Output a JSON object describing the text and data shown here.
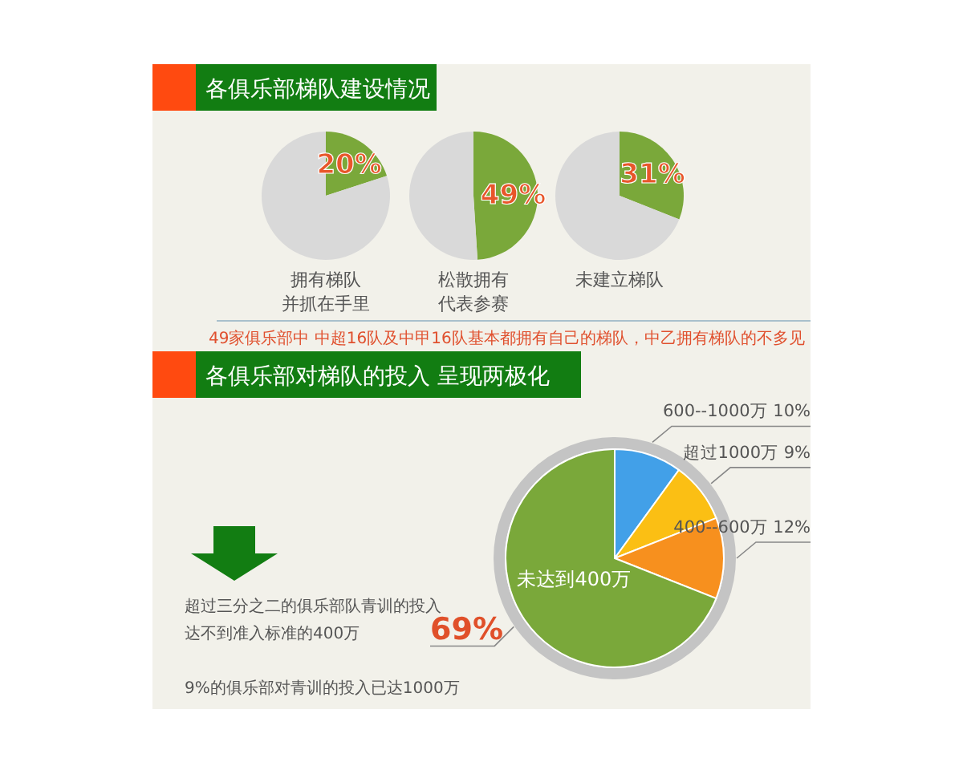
{
  "chart_data": [
    {
      "type": "pie",
      "title": "各俱乐部梯队建设情况",
      "xlabel": "拥有梯队并抓在手里",
      "categories": [
        null,
        null
      ],
      "values": [
        20,
        80
      ],
      "colors": [
        "#7aa83a",
        "#d9d9d9"
      ],
      "value_labels": [
        "20%",
        null
      ]
    },
    {
      "type": "pie",
      "xlabel": "松散拥有代表参赛",
      "categories": [
        null,
        null
      ],
      "values": [
        49,
        51
      ],
      "colors": [
        "#7aa83a",
        "#d9d9d9"
      ],
      "value_labels": [
        "49%",
        null
      ]
    },
    {
      "type": "pie",
      "xlabel": "未建立梯队",
      "categories": [
        null,
        null
      ],
      "values": [
        31,
        69
      ],
      "colors": [
        "#7aa83a",
        "#d9d9d9"
      ],
      "value_labels": [
        "31%",
        null
      ],
      "annotations": [
        "49家俱乐部中  中超16队及中甲16队基本都拥有自己的梯队，中乙拥有梯队的不多见"
      ]
    },
    {
      "type": "pie",
      "title": "各俱乐部对梯队的投入 呈现两极化",
      "categories": [
        "600--1000万",
        "超过1000万",
        "400--600万",
        "未达到400万"
      ],
      "values": [
        10,
        9,
        12,
        69
      ],
      "colors": [
        "#42a0e8",
        "#fbbf14",
        "#f7901e",
        "#7aa83a"
      ],
      "value_labels": [
        "10%",
        "9%",
        "12%",
        "69%"
      ],
      "annotations": [
        "超过三分之二的俱乐部队青训的投入",
        "达不到准入标准的400万",
        "9%的俱乐部对青训的投入已达1000万"
      ]
    }
  ]
}
